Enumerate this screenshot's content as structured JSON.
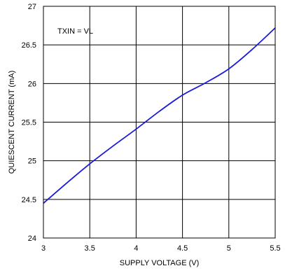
{
  "chart_data": {
    "type": "line",
    "title": "",
    "xlabel": "SUPPLY VOLTAGE (V)",
    "ylabel": "QUIESCENT CURRENT (mA)",
    "xlim": [
      3,
      5.5
    ],
    "ylim": [
      24,
      27
    ],
    "xticks": [
      "3",
      "3.5",
      "4",
      "4.5",
      "5",
      "5.5"
    ],
    "yticks": [
      "24",
      "24.5",
      "25",
      "25.5",
      "26",
      "26.5",
      "27"
    ],
    "grid": true,
    "annotation": "TXIN = VL",
    "line_color": "#1a1adb",
    "series": [
      {
        "x": [
          3.0,
          3.25,
          3.5,
          3.75,
          4.0,
          4.25,
          4.5,
          4.75,
          5.0,
          5.25,
          5.5
        ],
        "y": [
          24.45,
          24.71,
          24.96,
          25.19,
          25.41,
          25.64,
          25.85,
          26.01,
          26.19,
          26.44,
          26.72
        ]
      }
    ]
  }
}
